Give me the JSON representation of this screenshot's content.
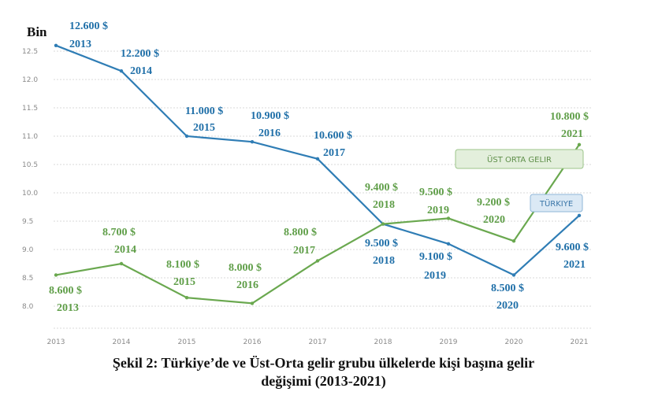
{
  "chart_data": {
    "type": "line",
    "ylabel": "Bin",
    "x": [
      "2013",
      "2014",
      "2015",
      "2016",
      "2017",
      "2018",
      "2019",
      "2020",
      "2021"
    ],
    "ylim": [
      7.8,
      12.6
    ],
    "yticks": [
      "12.5",
      "12.0",
      "11.5",
      "11.0",
      "10.5",
      "10.0",
      "9.5",
      "9.0",
      "8.5",
      "8.0"
    ],
    "grid": "horizontal dashed",
    "series": [
      {
        "name": "TÜRKIYE",
        "color": "#2f7db5",
        "values": [
          12.6,
          12.15,
          11.0,
          10.9,
          10.6,
          9.45,
          9.1,
          8.55,
          9.6
        ],
        "labels": [
          {
            "value": "12.600 $",
            "year": "2013"
          },
          {
            "value": "12.200 $",
            "year": "2014"
          },
          {
            "value": "11.000 $",
            "year": "2015"
          },
          {
            "value": "10.900 $",
            "year": "2016"
          },
          {
            "value": "10.600 $",
            "year": "2017"
          },
          {
            "value": "9.500 $",
            "year": "2018"
          },
          {
            "value": "9.100 $",
            "year": "2019"
          },
          {
            "value": "8.500 $",
            "year": "2020"
          },
          {
            "value": "9.600 $",
            "year": "2021"
          }
        ]
      },
      {
        "name": "ÜST ORTA GELIR",
        "color": "#6aa84f",
        "values": [
          8.55,
          8.75,
          8.15,
          8.05,
          8.8,
          9.45,
          9.55,
          9.15,
          10.85
        ],
        "labels": [
          {
            "value": "8.600 $",
            "year": "2013"
          },
          {
            "value": "8.700 $",
            "year": "2014"
          },
          {
            "value": "8.100 $",
            "year": "2015"
          },
          {
            "value": "8.000 $",
            "year": "2016"
          },
          {
            "value": "8.800 $",
            "year": "2017"
          },
          {
            "value": "9.400 $",
            "year": "2018"
          },
          {
            "value": "9.500 $",
            "year": "2019"
          },
          {
            "value": "9.200 $",
            "year": "2020"
          },
          {
            "value": "10.800 $",
            "year": "2021"
          }
        ]
      }
    ]
  },
  "caption": {
    "line1": "Şekil 2: Türkiye’de ve Üst-Orta gelir grubu ülkelerde kişi başına gelir",
    "line2": "değişimi (2013-2021)"
  }
}
